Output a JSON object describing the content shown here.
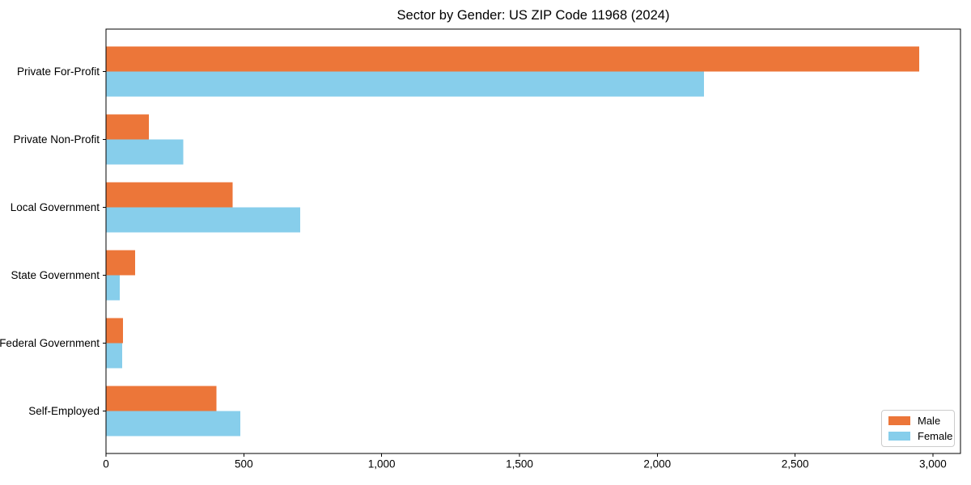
{
  "page": {
    "background": "#ffffff"
  },
  "chart_data": {
    "type": "bar",
    "orientation": "horizontal",
    "title": "Sector by Gender: US ZIP Code 11968 (2024)",
    "categories": [
      "Private For-Profit",
      "Private Non-Profit",
      "Local Government",
      "State Government",
      "Federal Government",
      "Self-Employed"
    ],
    "series": [
      {
        "name": "Male",
        "color": "#EC7639",
        "values": [
          2950,
          155,
          460,
          105,
          62,
          400
        ]
      },
      {
        "name": "Female",
        "color": "#87CEEB",
        "values": [
          2170,
          280,
          705,
          50,
          58,
          487
        ]
      }
    ],
    "xlabel": "",
    "ylabel": "",
    "xlim": [
      0,
      3100
    ],
    "x_ticks": [
      0,
      500,
      1000,
      1500,
      2000,
      2500,
      3000
    ],
    "x_tick_labels": [
      "0",
      "500",
      "1,000",
      "1,500",
      "2,000",
      "2,500",
      "3,000"
    ],
    "grid": false,
    "frame": true,
    "frame_color": "#000000",
    "text_color": "#000000",
    "legend": {
      "position": "lower right"
    }
  }
}
